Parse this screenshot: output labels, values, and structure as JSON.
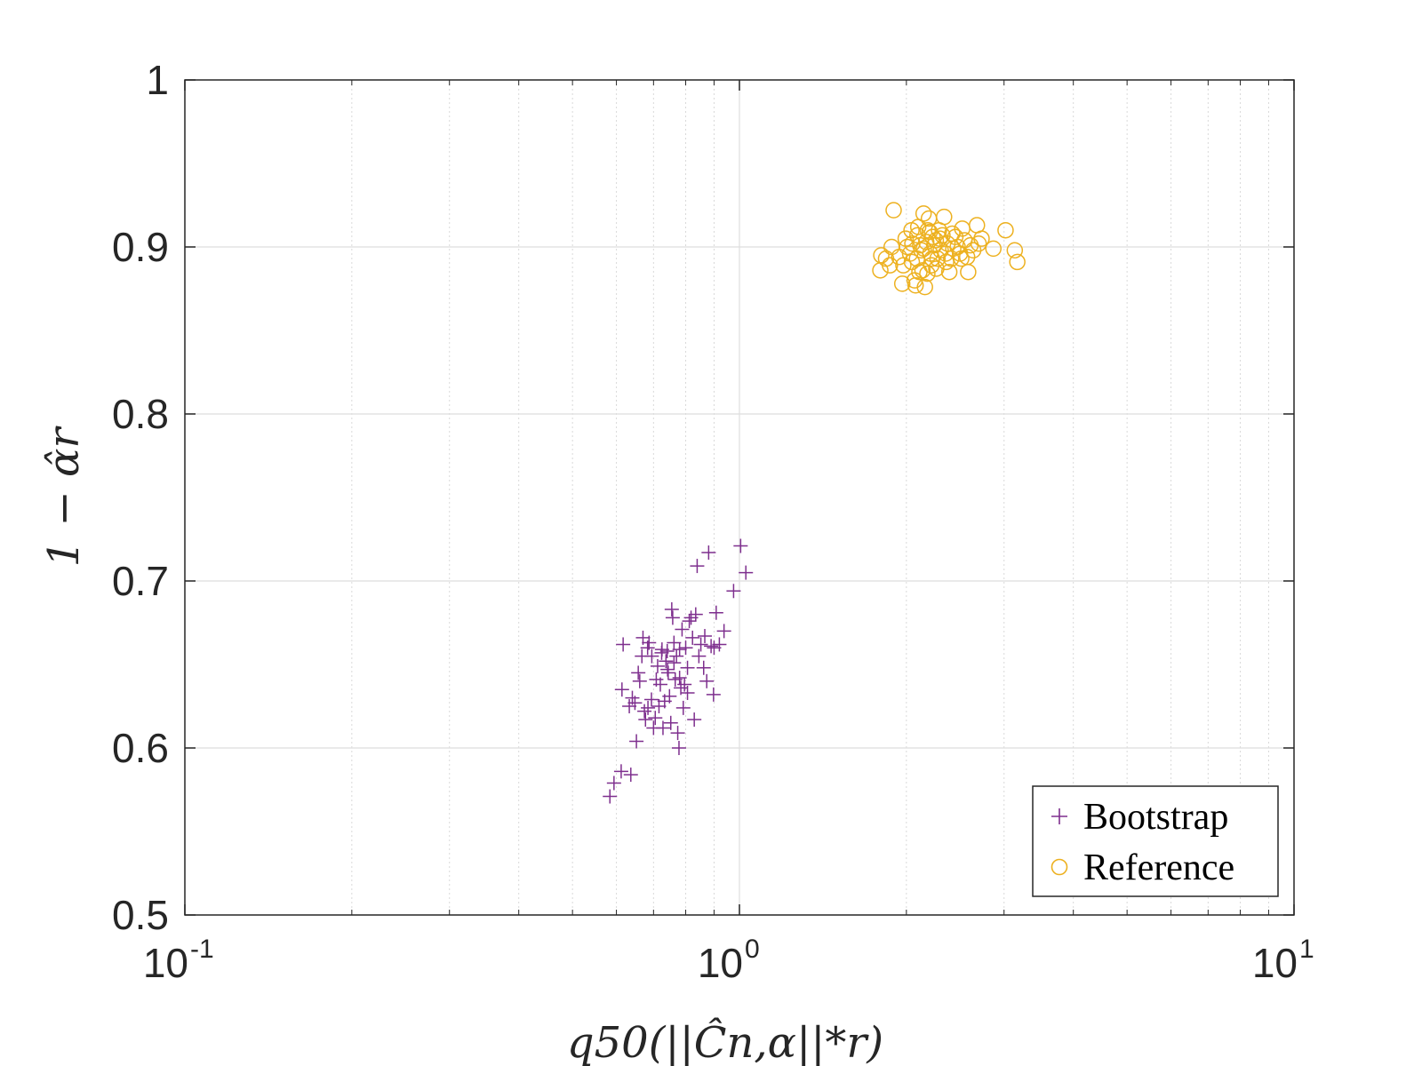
{
  "chart_data": {
    "type": "scatter",
    "title": "",
    "xlabel": "q50(||Ĉn,α||*r)",
    "ylabel": "1 − α̂r",
    "xscale": "log",
    "xlim": [
      0.1,
      10
    ],
    "ylim": [
      0.5,
      1
    ],
    "grid": true,
    "x_ticks": [
      {
        "base": "10",
        "exp": "-1"
      },
      {
        "base": "10",
        "exp": "0"
      },
      {
        "base": "10",
        "exp": "1"
      }
    ],
    "y_ticks": [
      "0.5",
      "0.6",
      "0.7",
      "0.8",
      "0.9",
      "1"
    ],
    "legend": {
      "position": "bottom-right"
    },
    "series": [
      {
        "name": "Bootstrap",
        "marker": "plus",
        "color": "#7E2F8E",
        "points": [
          [
            0.584,
            0.571
          ],
          [
            0.594,
            0.579
          ],
          [
            0.612,
            0.586
          ],
          [
            0.637,
            0.584
          ],
          [
            0.614,
            0.635
          ],
          [
            0.617,
            0.662
          ],
          [
            0.633,
            0.625
          ],
          [
            0.641,
            0.63
          ],
          [
            0.648,
            0.627
          ],
          [
            0.652,
            0.604
          ],
          [
            0.657,
            0.645
          ],
          [
            0.661,
            0.64
          ],
          [
            0.667,
            0.655
          ],
          [
            0.67,
            0.666
          ],
          [
            0.674,
            0.622
          ],
          [
            0.677,
            0.617
          ],
          [
            0.683,
            0.66
          ],
          [
            0.687,
            0.663
          ],
          [
            0.694,
            0.629
          ],
          [
            0.7,
            0.612
          ],
          [
            0.705,
            0.618
          ],
          [
            0.712,
            0.649
          ],
          [
            0.716,
            0.625
          ],
          [
            0.72,
            0.638
          ],
          [
            0.724,
            0.657
          ],
          [
            0.728,
            0.612
          ],
          [
            0.733,
            0.628
          ],
          [
            0.737,
            0.652
          ],
          [
            0.741,
            0.658
          ],
          [
            0.744,
            0.645
          ],
          [
            0.748,
            0.631
          ],
          [
            0.752,
            0.615
          ],
          [
            0.755,
            0.683
          ],
          [
            0.758,
            0.678
          ],
          [
            0.762,
            0.663
          ],
          [
            0.766,
            0.641
          ],
          [
            0.77,
            0.655
          ],
          [
            0.774,
            0.609
          ],
          [
            0.778,
            0.6
          ],
          [
            0.78,
            0.642
          ],
          [
            0.784,
            0.636
          ],
          [
            0.788,
            0.671
          ],
          [
            0.792,
            0.624
          ],
          [
            0.796,
            0.638
          ],
          [
            0.8,
            0.66
          ],
          [
            0.806,
            0.648
          ],
          [
            0.812,
            0.676
          ],
          [
            0.818,
            0.678
          ],
          [
            0.823,
            0.666
          ],
          [
            0.829,
            0.617
          ],
          [
            0.834,
            0.68
          ],
          [
            0.839,
            0.709
          ],
          [
            0.845,
            0.655
          ],
          [
            0.852,
            0.662
          ],
          [
            0.862,
            0.648
          ],
          [
            0.873,
            0.64
          ],
          [
            0.88,
            0.717
          ],
          [
            0.889,
            0.661
          ],
          [
            0.898,
            0.632
          ],
          [
            0.908,
            0.681
          ],
          [
            0.92,
            0.662
          ],
          [
            0.938,
            0.67
          ],
          [
            0.976,
            0.694
          ],
          [
            1.005,
            0.721
          ],
          [
            1.027,
            0.705
          ],
          [
            0.695,
            0.655
          ],
          [
            0.725,
            0.659
          ],
          [
            0.762,
            0.651
          ],
          [
            0.806,
            0.633
          ],
          [
            0.684,
            0.624
          ],
          [
            0.708,
            0.641
          ],
          [
            0.742,
            0.647
          ],
          [
            0.78,
            0.659
          ],
          [
            0.866,
            0.667
          ],
          [
            0.9,
            0.66
          ]
        ]
      },
      {
        "name": "Reference",
        "marker": "circle",
        "color": "#EDB120",
        "points": [
          [
            1.795,
            0.886
          ],
          [
            1.802,
            0.895
          ],
          [
            1.838,
            0.893
          ],
          [
            1.868,
            0.889
          ],
          [
            1.881,
            0.9
          ],
          [
            1.897,
            0.922
          ],
          [
            1.941,
            0.894
          ],
          [
            1.966,
            0.878
          ],
          [
            1.975,
            0.889
          ],
          [
            1.994,
            0.905
          ],
          [
            2.006,
            0.9
          ],
          [
            2.031,
            0.896
          ],
          [
            2.043,
            0.91
          ],
          [
            2.05,
            0.902
          ],
          [
            2.07,
            0.88
          ],
          [
            2.078,
            0.877
          ],
          [
            2.09,
            0.893
          ],
          [
            2.101,
            0.912
          ],
          [
            2.118,
            0.901
          ],
          [
            2.129,
            0.898
          ],
          [
            2.138,
            0.886
          ],
          [
            2.148,
            0.92
          ],
          [
            2.16,
            0.876
          ],
          [
            2.172,
            0.903
          ],
          [
            2.182,
            0.884
          ],
          [
            2.196,
            0.917
          ],
          [
            2.208,
            0.896
          ],
          [
            2.219,
            0.889
          ],
          [
            2.23,
            0.906
          ],
          [
            2.245,
            0.901
          ],
          [
            2.26,
            0.904
          ],
          [
            2.276,
            0.893
          ],
          [
            2.29,
            0.91
          ],
          [
            2.306,
            0.898
          ],
          [
            2.323,
            0.907
          ],
          [
            2.339,
            0.918
          ],
          [
            2.355,
            0.896
          ],
          [
            2.372,
            0.902
          ],
          [
            2.39,
            0.885
          ],
          [
            2.409,
            0.893
          ],
          [
            2.43,
            0.899
          ],
          [
            2.451,
            0.906
          ],
          [
            2.475,
            0.9
          ],
          [
            2.499,
            0.896
          ],
          [
            2.522,
            0.911
          ],
          [
            2.546,
            0.904
          ],
          [
            2.574,
            0.894
          ],
          [
            2.585,
            0.885
          ],
          [
            2.61,
            0.901
          ],
          [
            2.64,
            0.898
          ],
          [
            2.681,
            0.913
          ],
          [
            2.7,
            0.902
          ],
          [
            2.733,
            0.905
          ],
          [
            2.87,
            0.899
          ],
          [
            3.019,
            0.91
          ],
          [
            3.137,
            0.898
          ],
          [
            3.17,
            0.891
          ],
          [
            2.094,
            0.907
          ],
          [
            2.15,
            0.899
          ],
          [
            2.203,
            0.909
          ],
          [
            2.264,
            0.887
          ],
          [
            2.359,
            0.891
          ],
          [
            2.42,
            0.908
          ],
          [
            2.512,
            0.893
          ],
          [
            2.046,
            0.891
          ],
          [
            2.111,
            0.885
          ],
          [
            2.186,
            0.91
          ],
          [
            2.225,
            0.893
          ],
          [
            2.297,
            0.905
          ]
        ]
      }
    ]
  }
}
